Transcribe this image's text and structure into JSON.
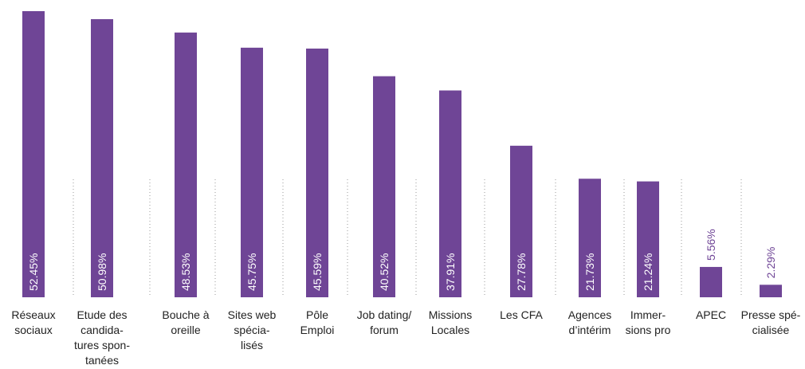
{
  "chart_data": {
    "type": "bar",
    "categories": [
      [
        "Réseaux",
        "sociaux"
      ],
      [
        "Etude des",
        "candida-",
        "tures spon-",
        "tanées"
      ],
      [
        "Bouche à",
        "oreille"
      ],
      [
        "Sites web",
        "spécia-",
        "lisés"
      ],
      [
        "Pôle",
        "Emploi"
      ],
      [
        "Job dating/",
        "forum"
      ],
      [
        "Missions",
        "Locales"
      ],
      [
        "Les CFA"
      ],
      [
        "Agences",
        "d’intérim"
      ],
      [
        "Immer-",
        "sions pro"
      ],
      [
        "APEC"
      ],
      [
        "Presse spé-",
        "cialisée"
      ]
    ],
    "values": [
      52.45,
      50.98,
      48.53,
      45.75,
      45.59,
      40.52,
      37.91,
      27.78,
      21.73,
      21.24,
      5.56,
      2.29
    ],
    "value_labels": [
      "52.45%",
      "50.98%",
      "48.53%",
      "45.75%",
      "45.59%",
      "40.52%",
      "37.91%",
      "27.78%",
      "21.73%",
      "21.24%",
      "5.56%",
      "2.29%"
    ],
    "color": "#6f4596"
  }
}
